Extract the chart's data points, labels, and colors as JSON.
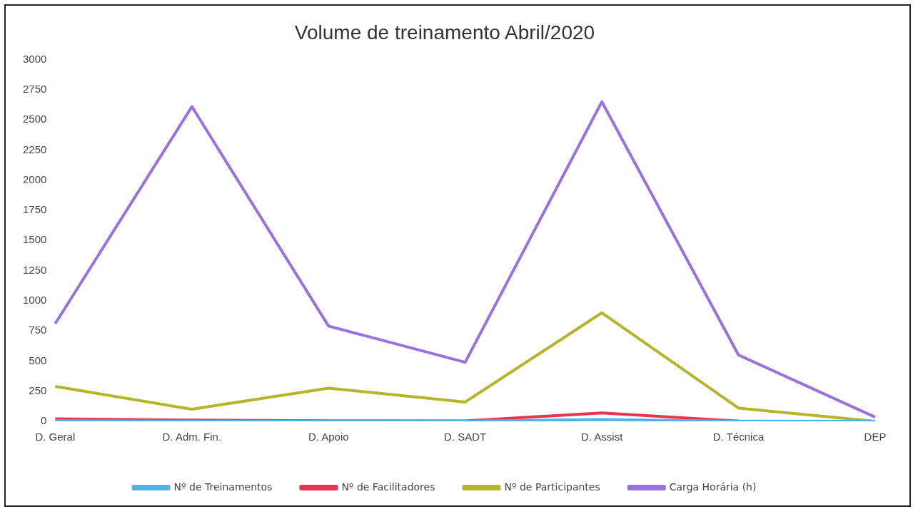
{
  "chart_data": {
    "type": "line",
    "title": "Volume de treinamento Abril/2020",
    "categories": [
      "D. Geral",
      "D. Adm. Fin.",
      "D. Apoio",
      "D. SADT",
      "D. Assist",
      "D. Técnica",
      "DEP"
    ],
    "series": [
      {
        "name": "Nº de Treinamentos",
        "color": "#4fb3e8",
        "values": [
          5,
          2,
          2,
          1,
          15,
          1,
          0
        ]
      },
      {
        "name": "Nº de Facilitadores",
        "color": "#e8344e",
        "values": [
          20,
          10,
          5,
          3,
          70,
          2,
          0
        ]
      },
      {
        "name": "Nº de Participantes",
        "color": "#b5b52a",
        "values": [
          290,
          100,
          275,
          160,
          900,
          110,
          0
        ]
      },
      {
        "name": "Carga Horária (h)",
        "color": "#9a72e0",
        "values": [
          810,
          2610,
          790,
          490,
          2650,
          550,
          35
        ]
      }
    ],
    "ylim": [
      0,
      3000
    ],
    "yticks": [
      0,
      250,
      500,
      750,
      1000,
      1250,
      1500,
      1750,
      2000,
      2250,
      2500,
      2750,
      3000
    ],
    "grid": false,
    "legend": "bottom",
    "marker": "none",
    "line_style": "solid"
  }
}
